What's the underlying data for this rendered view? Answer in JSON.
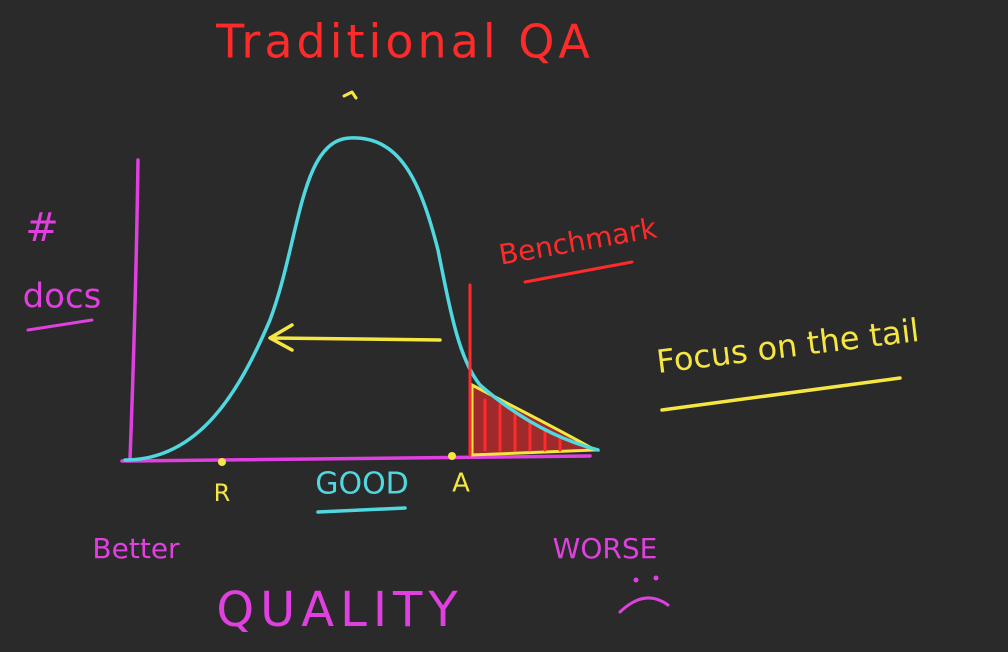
{
  "title": "Traditional QA",
  "y_axis": {
    "symbol": "#",
    "label": "docs"
  },
  "benchmark": "Benchmark",
  "note": "Focus on the tail",
  "x_markers": {
    "left": "R",
    "center": "GOOD",
    "right": "A"
  },
  "x_axis": {
    "left": "Better",
    "right": "WORSE",
    "label": "QUALITY"
  }
}
